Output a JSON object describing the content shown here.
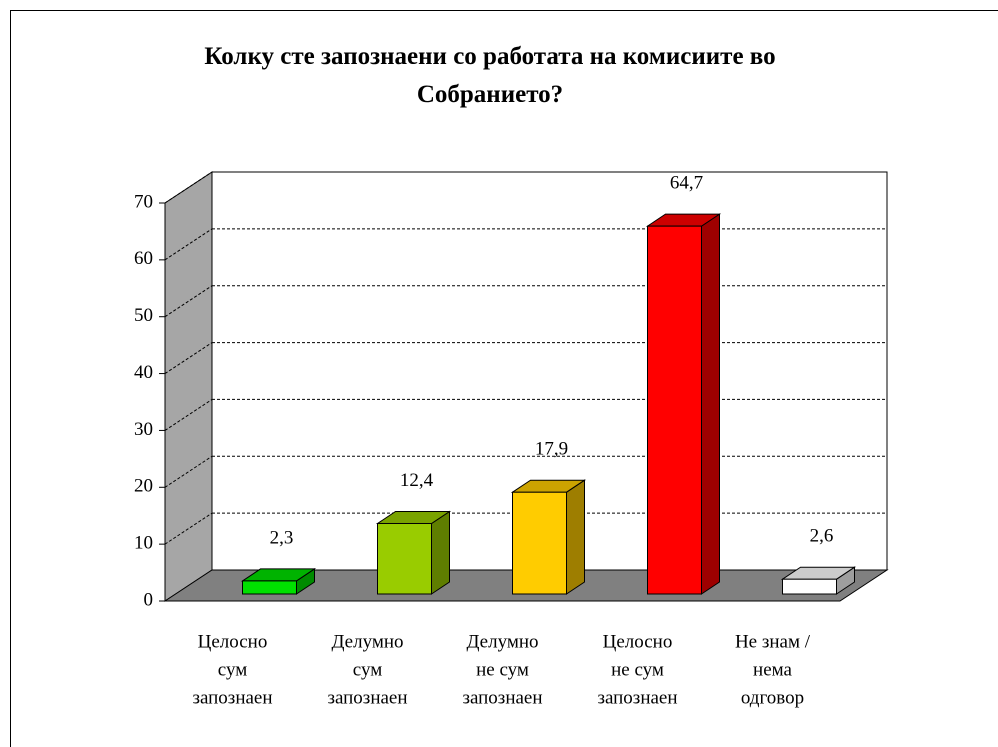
{
  "chart_data": {
    "type": "bar3d",
    "title": "Колку сте запознаени со работата на комисиите во Собранието?",
    "categories": [
      [
        "Целосно",
        "сум",
        "запознаен"
      ],
      [
        "Делумно",
        "сум",
        "запознаен"
      ],
      [
        "Делумно",
        "не сум",
        "запознаен"
      ],
      [
        "Целосно",
        "не сум",
        "запознаен"
      ],
      [
        "Не знам /",
        "нема",
        "одговор"
      ]
    ],
    "values": [
      2.3,
      12.4,
      17.9,
      64.7,
      2.6
    ],
    "value_labels": [
      "2,3",
      "12,4",
      "17,9",
      "64,7",
      "2,6"
    ],
    "colors": [
      "#00e000",
      "#99cc00",
      "#ffcc00",
      "#ff0000",
      "#ffffff"
    ],
    "ylim": [
      0,
      70
    ],
    "yticks": [
      0,
      10,
      20,
      30,
      40,
      50,
      60,
      70
    ],
    "grid": true
  }
}
